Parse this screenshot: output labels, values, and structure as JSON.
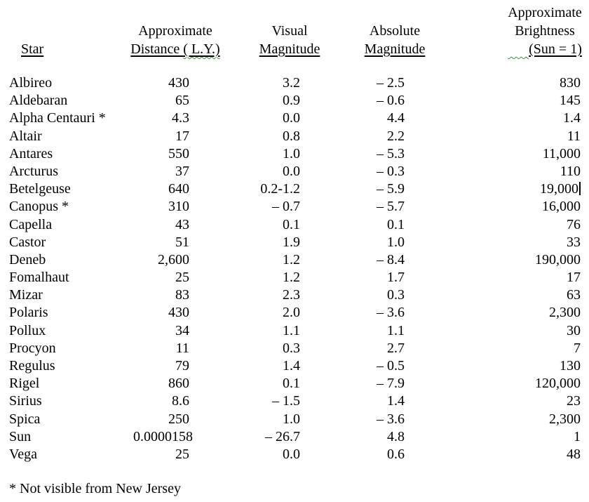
{
  "colors": {
    "background": "#ffffff",
    "text": "#000000",
    "underline": "#000000",
    "spellcheck_squiggle": "#22a022",
    "text_cursor": "#000000"
  },
  "header": {
    "star": "Star",
    "distance_line1": "Approximate",
    "distance_line2_prefix": "Distance ",
    "distance_line2_squiggled": "( L.Y.)",
    "visual_line1": "Visual",
    "visual_line2": "Magnitude",
    "absolute_line1": "Absolute",
    "absolute_line2": "Magnitude",
    "brightness_line1": "Approximate",
    "brightness_line2": "Brightness",
    "brightness_line3": "(Sun = 1)"
  },
  "table": {
    "columns": [
      "star",
      "distance",
      "visual",
      "absolute",
      "brightness"
    ],
    "rows": [
      {
        "star": "Albireo",
        "distance": "430",
        "visual": "3.2",
        "absolute": "– 2.5",
        "brightness": "830"
      },
      {
        "star": "Aldebaran",
        "distance": "65",
        "visual": "0.9",
        "absolute": "– 0.6",
        "brightness": "145"
      },
      {
        "star": "Alpha Centauri *",
        "distance": "4.3",
        "visual": "0.0",
        "absolute": "4.4",
        "brightness": "1.4"
      },
      {
        "star": "Altair",
        "distance": "17",
        "visual": "0.8",
        "absolute": "2.2",
        "brightness": "11"
      },
      {
        "star": "Antares",
        "distance": "550",
        "visual": "1.0",
        "absolute": "– 5.3",
        "brightness": "11,000"
      },
      {
        "star": "Arcturus",
        "distance": "37",
        "visual": "0.0",
        "absolute": "– 0.3",
        "brightness": "110"
      },
      {
        "star": "Betelgeuse",
        "distance": "640",
        "visual": "0.2-1.2",
        "absolute": "– 5.9",
        "brightness": "19,000"
      },
      {
        "star": "Canopus *",
        "distance": "310",
        "visual": "– 0.7",
        "absolute": "– 5.7",
        "brightness": "16,000"
      },
      {
        "star": "Capella",
        "distance": "43",
        "visual": "0.1",
        "absolute": "0.1",
        "brightness": "76"
      },
      {
        "star": "Castor",
        "distance": "51",
        "visual": "1.9",
        "absolute": "1.0",
        "brightness": "33"
      },
      {
        "star": "Deneb",
        "distance": "2,600",
        "visual": "1.2",
        "absolute": "– 8.4",
        "brightness": "190,000"
      },
      {
        "star": "Fomalhaut",
        "distance": "25",
        "visual": "1.2",
        "absolute": "1.7",
        "brightness": "17"
      },
      {
        "star": "Mizar",
        "distance": "83",
        "visual": "2.3",
        "absolute": "0.3",
        "brightness": "63"
      },
      {
        "star": "Polaris",
        "distance": "430",
        "visual": "2.0",
        "absolute": "– 3.6",
        "brightness": "2,300"
      },
      {
        "star": "Pollux",
        "distance": "34",
        "visual": "1.1",
        "absolute": "1.1",
        "brightness": "30"
      },
      {
        "star": "Procyon",
        "distance": "11",
        "visual": "0.3",
        "absolute": "2.7",
        "brightness": "7"
      },
      {
        "star": "Regulus",
        "distance": "79",
        "visual": "1.4",
        "absolute": "– 0.5",
        "brightness": "130"
      },
      {
        "star": "Rigel",
        "distance": "860",
        "visual": "0.1",
        "absolute": "– 7.9",
        "brightness": "120,000"
      },
      {
        "star": "Sirius",
        "distance": "8.6",
        "visual": "– 1.5",
        "absolute": "1.4",
        "brightness": "23"
      },
      {
        "star": "Spica",
        "distance": "250",
        "visual": "1.0",
        "absolute": "– 3.6",
        "brightness": "2,300"
      },
      {
        "star": "Sun",
        "distance": "0.0000158",
        "visual": "– 26.7",
        "absolute": "4.8",
        "brightness": "1"
      },
      {
        "star": "Vega",
        "distance": "25",
        "visual": "0.0",
        "absolute": "0.6",
        "brightness": "48"
      }
    ]
  },
  "caret": {
    "row": "Betelgeuse",
    "column": "brightness",
    "row_index": 6
  },
  "footnote": "* Not visible from New Jersey"
}
